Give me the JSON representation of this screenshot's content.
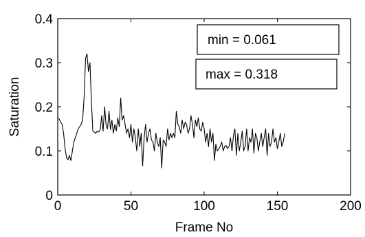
{
  "chart_data": {
    "type": "line",
    "title": "",
    "xlabel": "Frame No",
    "ylabel": "Saturation",
    "xlim": [
      0,
      200
    ],
    "ylim": [
      0,
      0.4
    ],
    "xticks": [
      "0",
      "50",
      "100",
      "150",
      "200"
    ],
    "yticks": [
      "0",
      "0.1",
      "0.2",
      "0.3",
      "0.4"
    ],
    "grid": false,
    "line_color": "#000000",
    "annotations": [
      "min = 0.061",
      "max = 0.318"
    ],
    "series": [
      {
        "x": [
          0,
          1,
          2,
          3,
          4,
          5,
          6,
          7,
          8,
          9,
          10,
          11,
          12,
          13,
          14,
          15,
          16,
          17,
          18,
          19,
          20,
          21,
          22,
          23,
          24,
          25,
          26,
          27,
          28,
          29,
          30,
          31,
          32,
          33,
          34,
          35,
          36,
          37,
          38,
          39,
          40,
          41,
          42,
          43,
          44,
          45,
          46,
          47,
          48,
          49,
          50,
          51,
          52,
          53,
          54,
          55,
          56,
          57,
          58,
          59,
          60,
          61,
          62,
          63,
          64,
          65,
          66,
          67,
          68,
          69,
          70,
          71,
          72,
          73,
          74,
          75,
          76,
          77,
          78,
          79,
          80,
          81,
          82,
          83,
          84,
          85,
          86,
          87,
          88,
          89,
          90,
          91,
          92,
          93,
          94,
          95,
          96,
          97,
          98,
          99,
          100,
          101,
          102,
          103,
          104,
          105,
          106,
          107,
          108,
          109,
          110,
          111,
          112,
          113,
          114,
          115,
          116,
          117,
          118,
          119,
          120,
          121,
          122,
          123,
          124,
          125,
          126,
          127,
          128,
          129,
          130,
          131,
          132,
          133,
          134,
          135,
          136,
          137,
          138,
          139,
          140,
          141,
          142,
          143,
          144,
          145,
          146,
          147,
          148,
          149,
          150,
          151,
          152,
          153,
          154,
          155
        ],
        "y": [
          0.175,
          0.172,
          0.165,
          0.16,
          0.14,
          0.105,
          0.085,
          0.08,
          0.09,
          0.078,
          0.1,
          0.12,
          0.13,
          0.14,
          0.15,
          0.155,
          0.16,
          0.17,
          0.22,
          0.31,
          0.32,
          0.28,
          0.3,
          0.21,
          0.145,
          0.142,
          0.14,
          0.145,
          0.143,
          0.148,
          0.18,
          0.145,
          0.2,
          0.16,
          0.15,
          0.19,
          0.148,
          0.17,
          0.14,
          0.16,
          0.145,
          0.175,
          0.155,
          0.22,
          0.17,
          0.18,
          0.16,
          0.14,
          0.15,
          0.13,
          0.16,
          0.12,
          0.15,
          0.13,
          0.1,
          0.15,
          0.11,
          0.14,
          0.066,
          0.13,
          0.16,
          0.12,
          0.14,
          0.15,
          0.125,
          0.12,
          0.1,
          0.14,
          0.12,
          0.11,
          0.13,
          0.061,
          0.125,
          0.12,
          0.11,
          0.15,
          0.125,
          0.14,
          0.13,
          0.14,
          0.13,
          0.19,
          0.16,
          0.155,
          0.14,
          0.17,
          0.15,
          0.165,
          0.16,
          0.14,
          0.15,
          0.18,
          0.16,
          0.13,
          0.17,
          0.155,
          0.175,
          0.15,
          0.145,
          0.165,
          0.15,
          0.12,
          0.14,
          0.11,
          0.15,
          0.12,
          0.14,
          0.078,
          0.115,
          0.1,
          0.105,
          0.11,
          0.12,
          0.1,
          0.11,
          0.112,
          0.105,
          0.11,
          0.13,
          0.1,
          0.135,
          0.15,
          0.09,
          0.14,
          0.1,
          0.12,
          0.145,
          0.1,
          0.11,
          0.15,
          0.1,
          0.13,
          0.12,
          0.15,
          0.095,
          0.14,
          0.13,
          0.1,
          0.12,
          0.14,
          0.11,
          0.13,
          0.15,
          0.09,
          0.14,
          0.11,
          0.12,
          0.15,
          0.12,
          0.13,
          0.105,
          0.12,
          0.14,
          0.11,
          0.12,
          0.14
        ]
      }
    ]
  }
}
